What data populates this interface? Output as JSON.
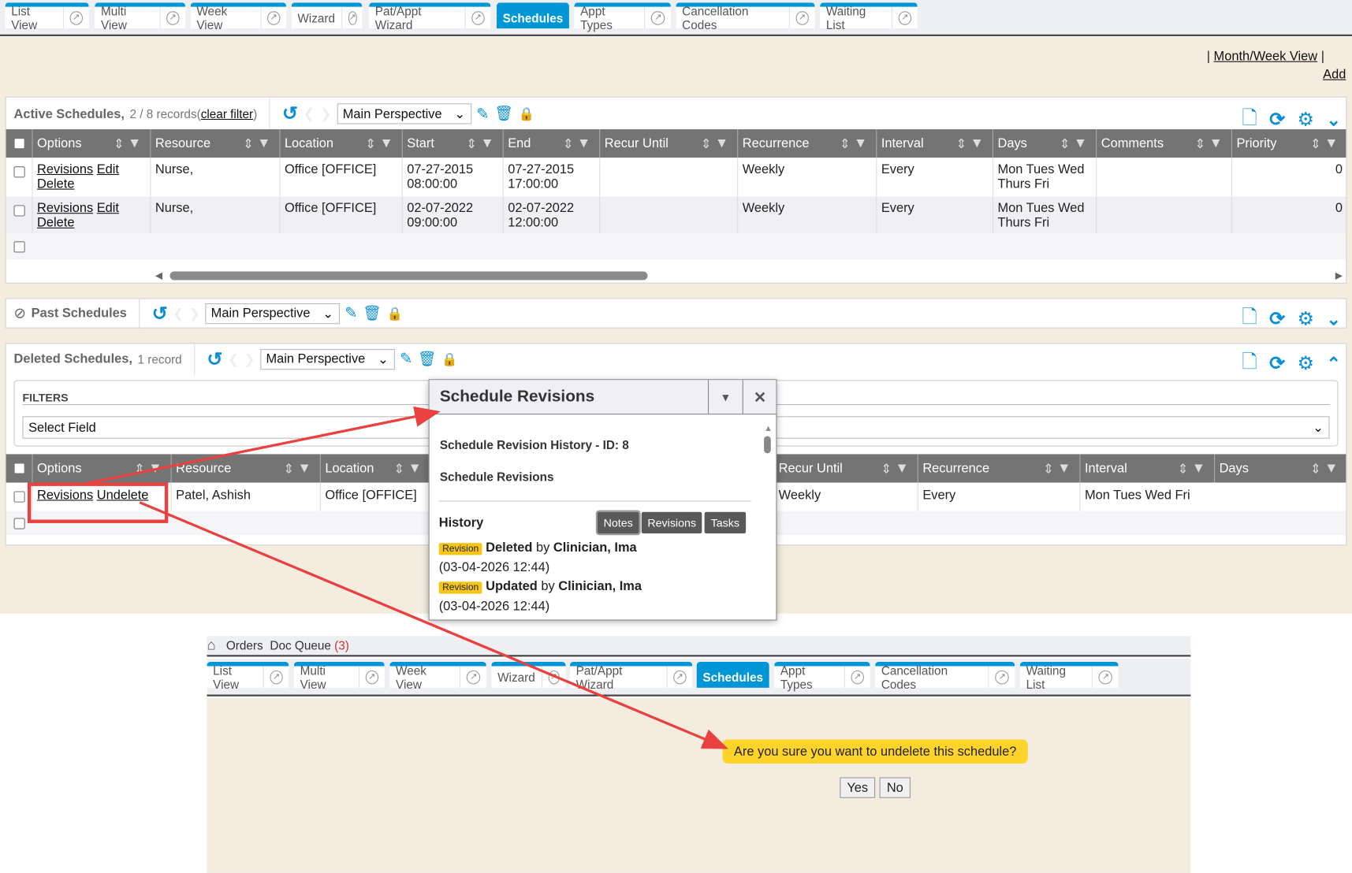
{
  "top_tabs": [
    {
      "label": "List View"
    },
    {
      "label": "Multi View"
    },
    {
      "label": "Week View"
    },
    {
      "label": "Wizard"
    },
    {
      "label": "Pat/Appt Wizard"
    },
    {
      "label": "Schedules",
      "active": true
    },
    {
      "label": "Appt Types"
    },
    {
      "label": "Cancellation Codes"
    },
    {
      "label": "Waiting List"
    }
  ],
  "links": {
    "month_week": "Month/Week View",
    "add": "Add",
    "pipe": "|"
  },
  "active": {
    "title": "Active Schedules,",
    "count": "2 / 8 records",
    "clear_open": "(",
    "clear": "clear filter",
    "clear_close": ")",
    "perspective": "Main Perspective",
    "columns": [
      "Options",
      "Resource",
      "Location",
      "Start",
      "End",
      "Recur Until",
      "Recurrence",
      "Interval",
      "Days",
      "Comments",
      "Priority"
    ],
    "rows": [
      {
        "options": [
          "Revisions",
          "Edit",
          "Delete"
        ],
        "resource": "Nurse,",
        "location": "Office [OFFICE]",
        "start": "07-27-2015 08:00:00",
        "end": "07-27-2015 17:00:00",
        "recur_until": "",
        "recurrence": "Weekly",
        "interval": "Every",
        "days": "Mon Tues Wed Thurs Fri",
        "comments": "",
        "priority": "0"
      },
      {
        "options": [
          "Revisions",
          "Edit",
          "Delete"
        ],
        "resource": "Nurse,",
        "location": "Office [OFFICE]",
        "start": "02-07-2022 09:00:00",
        "end": "02-07-2022 12:00:00",
        "recur_until": "",
        "recurrence": "Weekly",
        "interval": "Every",
        "days": "Mon Tues Wed Thurs Fri",
        "comments": "",
        "priority": "0"
      }
    ]
  },
  "past": {
    "title": "Past Schedules",
    "perspective": "Main Perspective"
  },
  "deleted": {
    "title": "Deleted Schedules,",
    "count": "1 record",
    "perspective": "Main Perspective",
    "filters_label": "FILTERS",
    "select_field": "Select Field",
    "columns": [
      "Options",
      "Resource",
      "Location",
      "Recur Until",
      "Recurrence",
      "Interval",
      "Days"
    ],
    "row": {
      "options": [
        "Revisions",
        "Undelete"
      ],
      "resource": "Patel, Ashish",
      "location": "Office [OFFICE]",
      "recurrence": "Weekly",
      "interval": "Every",
      "days": "Mon Tues Wed Fri"
    }
  },
  "modal": {
    "title": "Schedule Revisions",
    "history_title": "Schedule Revision History - ID: 8",
    "subtitle": "Schedule Revisions",
    "history": "History",
    "buttons": [
      "Notes",
      "Revisions",
      "Tasks"
    ],
    "entries": [
      {
        "badge": "Revision",
        "action": "Deleted",
        "by": "by",
        "user": "Clinician, Ima",
        "time": "(03-04-2026 12:44)"
      },
      {
        "badge": "Revision",
        "action": "Updated",
        "by": "by",
        "user": "Clinician, Ima",
        "time": "(03-04-2026 12:44)"
      }
    ]
  },
  "bottom": {
    "nav": [
      "Orders",
      "Doc Queue"
    ],
    "doc_count": "(3)",
    "confirm": "Are you sure you want to undelete this schedule?",
    "yes": "Yes",
    "no": "No"
  },
  "colors": {
    "accent": "#0096d6",
    "beige": "#f3ecdf",
    "header_gray": "#747474",
    "badge": "#f5c518",
    "confirm": "#ffd42a",
    "annotation": "#e8413f"
  }
}
